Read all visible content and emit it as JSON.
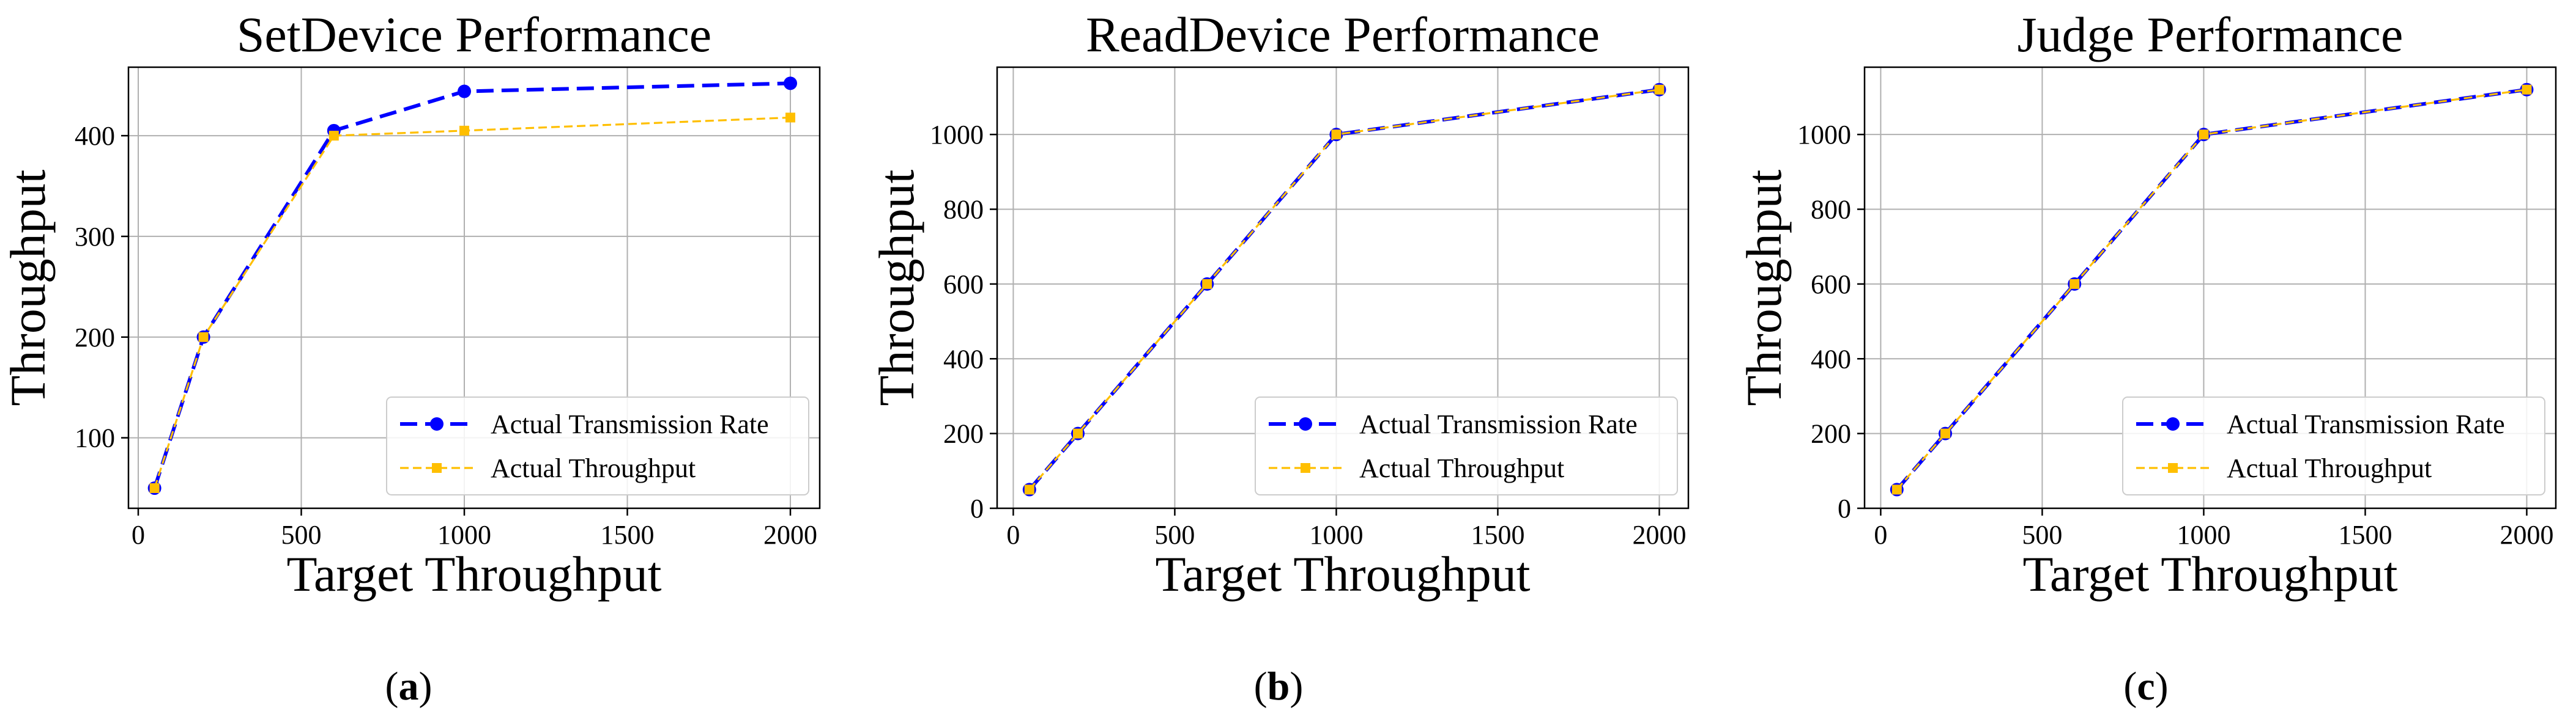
{
  "colors": {
    "transmission": "#0000ff",
    "throughput": "#ffbf00",
    "grid": "#b0b0b0",
    "axis": "#000000"
  },
  "chart_data": [
    {
      "type": "line",
      "panel_label": "a",
      "title": "SetDevice Performance",
      "xlabel": "Target Throughput",
      "ylabel": "Throughput",
      "xlim": [
        -30,
        2090
      ],
      "ylim": [
        30,
        468
      ],
      "xticks": [
        0,
        500,
        1000,
        1500,
        2000
      ],
      "yticks": [
        100,
        200,
        300,
        400
      ],
      "grid": true,
      "legend_position": "lower right",
      "series": [
        {
          "name": "Actual Transmission Rate",
          "style": "dashed-circle",
          "color_key": "transmission",
          "x": [
            50,
            200,
            600,
            1000,
            2000
          ],
          "y": [
            50,
            200,
            405,
            444,
            452
          ]
        },
        {
          "name": "Actual Throughput",
          "style": "dashed-square",
          "color_key": "throughput",
          "x": [
            50,
            200,
            600,
            1000,
            2000
          ],
          "y": [
            50,
            200,
            400,
            405,
            418
          ]
        }
      ]
    },
    {
      "type": "line",
      "panel_label": "b",
      "title": "ReadDevice Performance",
      "xlabel": "Target Throughput",
      "ylabel": "Throughput",
      "xlim": [
        -50,
        2090
      ],
      "ylim": [
        0,
        1180
      ],
      "xticks": [
        0,
        500,
        1000,
        1500,
        2000
      ],
      "yticks": [
        0,
        200,
        400,
        600,
        800,
        1000
      ],
      "grid": true,
      "legend_position": "lower right",
      "series": [
        {
          "name": "Actual Transmission Rate",
          "style": "dashed-circle",
          "color_key": "transmission",
          "x": [
            50,
            200,
            600,
            1000,
            2000
          ],
          "y": [
            50,
            200,
            600,
            1000,
            1120
          ]
        },
        {
          "name": "Actual Throughput",
          "style": "dashed-square",
          "color_key": "throughput",
          "x": [
            50,
            200,
            600,
            1000,
            2000
          ],
          "y": [
            50,
            200,
            600,
            1000,
            1120
          ]
        }
      ]
    },
    {
      "type": "line",
      "panel_label": "c",
      "title": "Judge Performance",
      "xlabel": "Target Throughput",
      "ylabel": "Throughput",
      "xlim": [
        -50,
        2090
      ],
      "ylim": [
        0,
        1180
      ],
      "xticks": [
        0,
        500,
        1000,
        1500,
        2000
      ],
      "yticks": [
        0,
        200,
        400,
        600,
        800,
        1000
      ],
      "grid": true,
      "legend_position": "lower right",
      "series": [
        {
          "name": "Actual Transmission Rate",
          "style": "dashed-circle",
          "color_key": "transmission",
          "x": [
            50,
            200,
            600,
            1000,
            2000
          ],
          "y": [
            50,
            200,
            600,
            1000,
            1120
          ]
        },
        {
          "name": "Actual Throughput",
          "style": "dashed-square",
          "color_key": "throughput",
          "x": [
            50,
            200,
            600,
            1000,
            2000
          ],
          "y": [
            50,
            200,
            600,
            1000,
            1120
          ]
        }
      ]
    }
  ]
}
